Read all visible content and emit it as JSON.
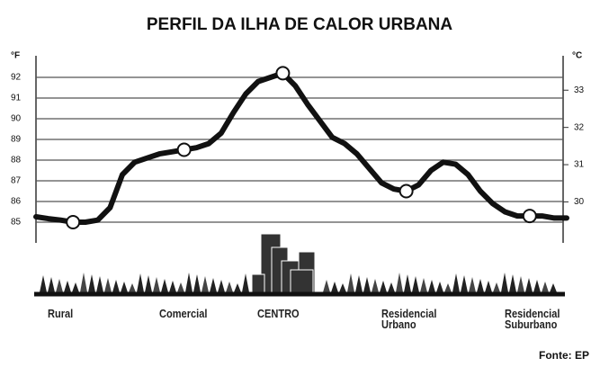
{
  "chart_data": {
    "type": "line",
    "title": "PERFIL DA ILHA DE CALOR URBANA",
    "y_label": "°F",
    "y2_label": "°C",
    "source": "Fonte: EP",
    "categories": [
      null,
      null,
      null,
      "Rural",
      null,
      null,
      null,
      null,
      null,
      null,
      null,
      null,
      "Comercial",
      null,
      null,
      null,
      null,
      null,
      null,
      null,
      "CENTRO",
      null,
      null,
      null,
      null,
      null,
      null,
      null,
      null,
      null,
      "Residencial Urbano",
      null,
      null,
      null,
      null,
      null,
      null,
      null,
      null,
      null,
      "Residencial Suburbano",
      null,
      null,
      null
    ],
    "series": [
      {
        "color": "#111111",
        "values": [
          85.26,
          85.17,
          85.1,
          85.0,
          85.0,
          85.1,
          85.7,
          87.3,
          87.9,
          88.1,
          88.3,
          88.4,
          88.5,
          88.6,
          88.8,
          89.3,
          90.3,
          91.2,
          91.8,
          92.0,
          92.2,
          91.6,
          90.7,
          89.9,
          89.1,
          88.8,
          88.3,
          87.6,
          86.9,
          86.6,
          86.5,
          86.8,
          87.5,
          87.9,
          87.8,
          87.3,
          86.5,
          85.9,
          85.5,
          85.3,
          85.3,
          85.3,
          85.2,
          85.2
        ]
      }
    ],
    "ylim": [
      84,
      93
    ],
    "yticks": [
      85,
      86,
      87,
      88,
      89,
      90,
      91,
      92
    ],
    "y2lim": [
      28.9,
      33.9
    ],
    "y2ticks": [
      30,
      31,
      32,
      33
    ],
    "grid": true
  }
}
